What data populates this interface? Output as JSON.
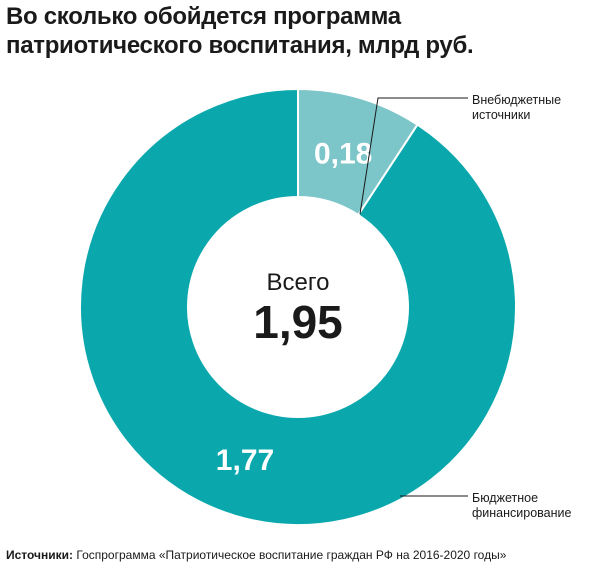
{
  "title_lines": [
    "Во сколько обойдется программа",
    "патриотического воспитания, млрд руб."
  ],
  "center": {
    "label": "Всего",
    "value": "1,95"
  },
  "source": {
    "label": "Источники:",
    "text": "Госпрограмма «Патриотическое воспитание граждан РФ  на 2016-2020 годы»"
  },
  "colors": {
    "budget": "#0AA8AD",
    "extra": "#7CC5C8",
    "text": "#1a1a1a"
  },
  "chart_data": {
    "type": "pie",
    "title": "Во сколько обойдется программа патриотического воспитания, млрд руб.",
    "total": 1.95,
    "slices": [
      {
        "name": "Внебюджетные источники",
        "name_lines": [
          "Внебюджетные",
          "источники"
        ],
        "value": 0.18,
        "value_label": "0,18",
        "color": "#7CC5C8"
      },
      {
        "name": "Бюджетное финансирование",
        "name_lines": [
          "Бюджетное",
          "финансирование"
        ],
        "value": 1.77,
        "value_label": "1,77",
        "color": "#0AA8AD"
      }
    ],
    "donut": true
  }
}
